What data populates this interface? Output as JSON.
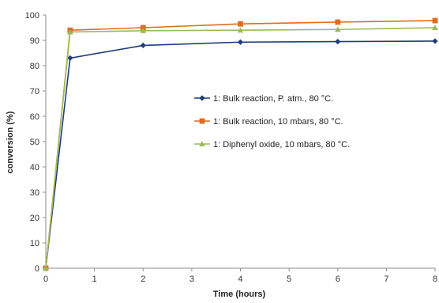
{
  "chart_data": {
    "type": "line",
    "title": "",
    "xlabel": "Time (hours)",
    "ylabel": "conversion (%)",
    "xlim": [
      0,
      8
    ],
    "ylim": [
      0,
      100
    ],
    "x_ticks": [
      0,
      1,
      2,
      3,
      4,
      5,
      6,
      7,
      8
    ],
    "y_ticks": [
      0,
      10,
      20,
      30,
      40,
      50,
      60,
      70,
      80,
      90,
      100
    ],
    "grid": false,
    "legend_position": "center-right",
    "series": [
      {
        "name": "1: Bulk reaction, P. atm., 80 °C.",
        "color": "#1f3d7a",
        "marker": "diamond",
        "x": [
          0,
          0.5,
          2,
          4,
          6,
          8
        ],
        "y": [
          0,
          83,
          88,
          89.3,
          89.5,
          89.7
        ]
      },
      {
        "name": "1: Bulk reaction, 10 mbars, 80 °C.",
        "color": "#e36c1e",
        "marker": "square",
        "x": [
          0,
          0.5,
          2,
          4,
          6,
          8
        ],
        "y": [
          0,
          94,
          95,
          96.5,
          97.2,
          97.8
        ]
      },
      {
        "name": "1: Diphenyl oxide, 10 mbars, 80 °C.",
        "color": "#9bbb59",
        "marker": "triangle",
        "x": [
          0,
          0.5,
          2,
          4,
          6,
          8
        ],
        "y": [
          0,
          93.3,
          93.8,
          94,
          94.3,
          95
        ]
      }
    ]
  }
}
